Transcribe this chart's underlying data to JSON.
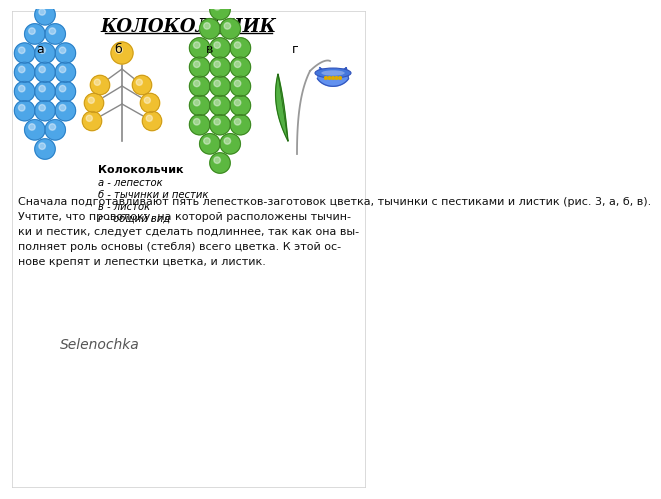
{
  "title": "КОЛОКОЛЬЧИК",
  "background_color": "#ffffff",
  "label_a": "а",
  "label_b": "б",
  "label_v": "в",
  "label_g": "г",
  "blue_color": "#4da6e8",
  "blue_dark": "#2a7abf",
  "yellow_color": "#f0c030",
  "yellow_dark": "#c8961a",
  "green_color": "#5cb840",
  "green_dark": "#3a7d20",
  "legend_title": "Колокольчик",
  "legend_lines": [
    "а - лепесток",
    "б - тычинки и пестик",
    "в - листок",
    "г - общий вид"
  ],
  "body_text": "Сначала подготавливают пять лепестков-заготовок цветка, тычинки с пестиками и листик (рис. 3, а, б, в).\nУчтите, что проволоку, на которой расположены тычин-\nки и пестик, следует сделать подлиннее, так как она вы-\nполняет роль основы (стебля) всего цветка. К этой ос-\nнове крепят и лепестки цветка, и листик.",
  "signature": "Selenochka"
}
